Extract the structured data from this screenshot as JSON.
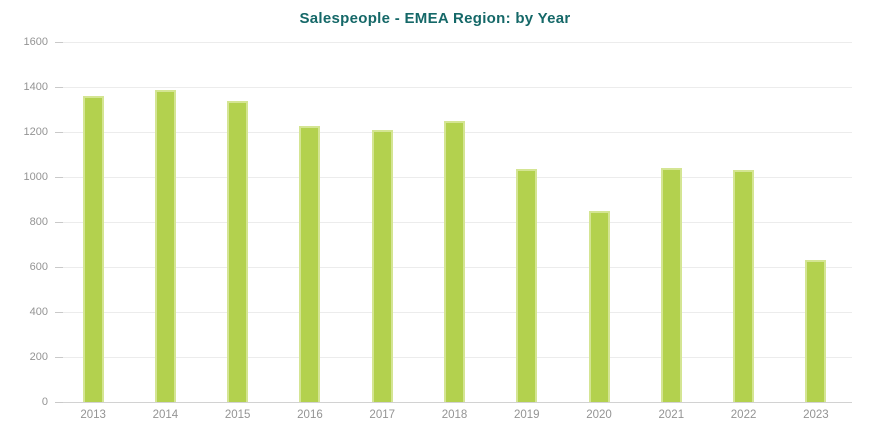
{
  "chart_data": {
    "type": "bar",
    "title": "Salespeople - EMEA Region: by Year",
    "categories": [
      "2013",
      "2014",
      "2015",
      "2016",
      "2017",
      "2018",
      "2019",
      "2020",
      "2021",
      "2022",
      "2023"
    ],
    "values": [
      1360,
      1385,
      1340,
      1225,
      1210,
      1250,
      1035,
      850,
      1040,
      1030,
      630
    ],
    "xlabel": "",
    "ylabel": "",
    "ylim": [
      0,
      1600
    ],
    "yticks": [
      0,
      200,
      400,
      600,
      800,
      1000,
      1200,
      1400,
      1600
    ],
    "grid": true,
    "legend_position": "none",
    "colors": {
      "bar_fill": "#b3d14e",
      "bar_edge": "#d4e593",
      "title": "#156868",
      "axis_label": "#949494",
      "gridline": "#ececec",
      "baseline": "#d2d2d2"
    }
  }
}
